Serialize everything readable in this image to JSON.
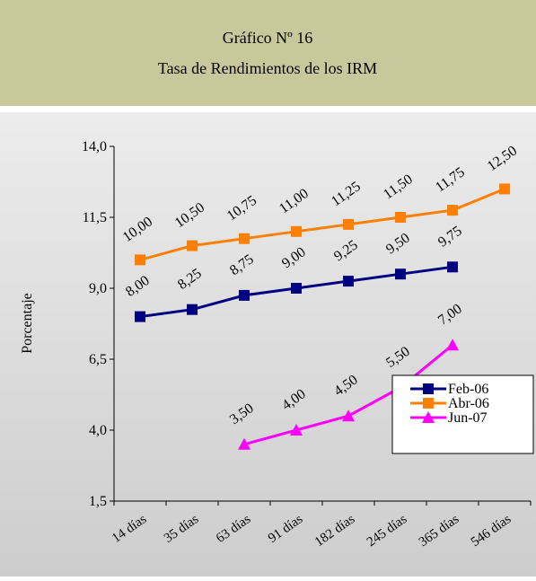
{
  "chart_data": {
    "type": "line",
    "title": "Gráfico Nº 16",
    "subtitle": "Tasa de Rendimientos de los IRM",
    "y_label": "Porcentaje",
    "categories": [
      "14 días",
      "35 días",
      "63 días",
      "91 días",
      "182 días",
      "245 días",
      "365 días",
      "546 días"
    ],
    "series": [
      {
        "name": "Feb-06",
        "color": "#000080",
        "marker": "square",
        "values": [
          8.0,
          8.25,
          8.75,
          9.0,
          9.25,
          9.5,
          9.75,
          null
        ],
        "value_labels": [
          "8,00",
          "8,25",
          "8,75",
          "9,00",
          "9,25",
          "9,50",
          "9,75",
          null
        ]
      },
      {
        "name": "Abr-06",
        "color": "#ff8000",
        "marker": "square",
        "values": [
          10.0,
          10.5,
          10.75,
          11.0,
          11.25,
          11.5,
          11.75,
          12.5
        ],
        "value_labels": [
          "10,00",
          "10,50",
          "10,75",
          "11,00",
          "11,25",
          "11,50",
          "11,75",
          "12,50"
        ]
      },
      {
        "name": "Jun-07",
        "color": "#ff00ff",
        "marker": "triangle",
        "values": [
          null,
          null,
          3.5,
          4.0,
          4.5,
          5.5,
          7.0,
          null
        ],
        "value_labels": [
          null,
          null,
          "3,50",
          "4,00",
          "4,50",
          "5,50",
          "7,00",
          null
        ]
      }
    ],
    "ylim": [
      1.5,
      14.0
    ],
    "yticks": [
      {
        "value": 1.5,
        "label": "1,5"
      },
      {
        "value": 4.0,
        "label": "4,0"
      },
      {
        "value": 6.5,
        "label": "6,5"
      },
      {
        "value": 9.0,
        "label": "9,0"
      },
      {
        "value": 11.5,
        "label": "11,5"
      },
      {
        "value": 14.0,
        "label": "14,0"
      }
    ],
    "grid": false,
    "legend": "right"
  }
}
